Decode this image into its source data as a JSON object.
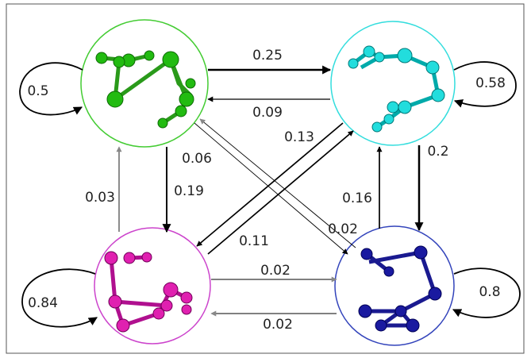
{
  "self_transitions": [
    0.5,
    0.58,
    0.84,
    0.8
  ],
  "transitions": [
    0.25,
    0.09,
    0.13,
    0.06,
    0.19,
    0.03,
    0.11,
    0.02,
    0.02,
    0.02,
    0.16,
    0.2
  ]
}
